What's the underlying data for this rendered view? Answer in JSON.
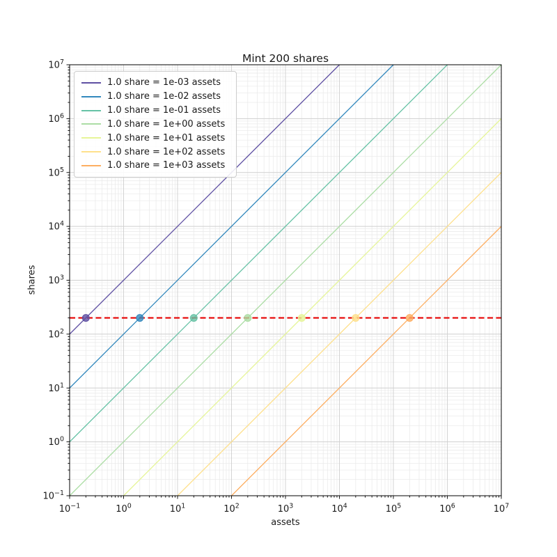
{
  "page": {
    "background": "#ffffff"
  },
  "chart_data": {
    "type": "line",
    "title": "Mint 200 shares",
    "xlabel": "assets",
    "ylabel": "shares",
    "xscale": "log",
    "yscale": "log",
    "xlim": [
      0.1,
      10000000
    ],
    "ylim": [
      0.1,
      10000000
    ],
    "x_tick_exponents": [
      -1,
      0,
      1,
      2,
      3,
      4,
      5,
      6,
      7
    ],
    "y_tick_exponents": [
      -1,
      0,
      1,
      2,
      3,
      4,
      5,
      6,
      7
    ],
    "grid": {
      "major": true,
      "minor": true,
      "major_color": "#cfcfcf",
      "minor_color": "#e8e8e8"
    },
    "legend_position": "upper-left",
    "series": [
      {
        "label": "1.0 share = 1e-03 assets",
        "assets_per_share": 0.001,
        "color": "#5e4fa2",
        "point": {
          "assets": 0.2,
          "shares": 200
        }
      },
      {
        "label": "1.0 share = 1e-02 assets",
        "assets_per_share": 0.01,
        "color": "#3288bd",
        "point": {
          "assets": 2,
          "shares": 200
        }
      },
      {
        "label": "1.0 share = 1e-01 assets",
        "assets_per_share": 0.1,
        "color": "#66c2a5",
        "point": {
          "assets": 20,
          "shares": 200
        }
      },
      {
        "label": "1.0 share = 1e+00 assets",
        "assets_per_share": 1,
        "color": "#abdda4",
        "point": {
          "assets": 200,
          "shares": 200
        }
      },
      {
        "label": "1.0 share = 1e+01 assets",
        "assets_per_share": 10,
        "color": "#e6f598",
        "point": {
          "assets": 2000,
          "shares": 200
        }
      },
      {
        "label": "1.0 share = 1e+02 assets",
        "assets_per_share": 100,
        "color": "#fee08b",
        "point": {
          "assets": 20000,
          "shares": 200
        }
      },
      {
        "label": "1.0 share = 1e+03 assets",
        "assets_per_share": 1000,
        "color": "#fdae61",
        "point": {
          "assets": 200000,
          "shares": 200
        }
      }
    ],
    "reference_line": {
      "shares": 200,
      "color": "#e60000",
      "style": "dashed",
      "width": 2.2
    }
  }
}
